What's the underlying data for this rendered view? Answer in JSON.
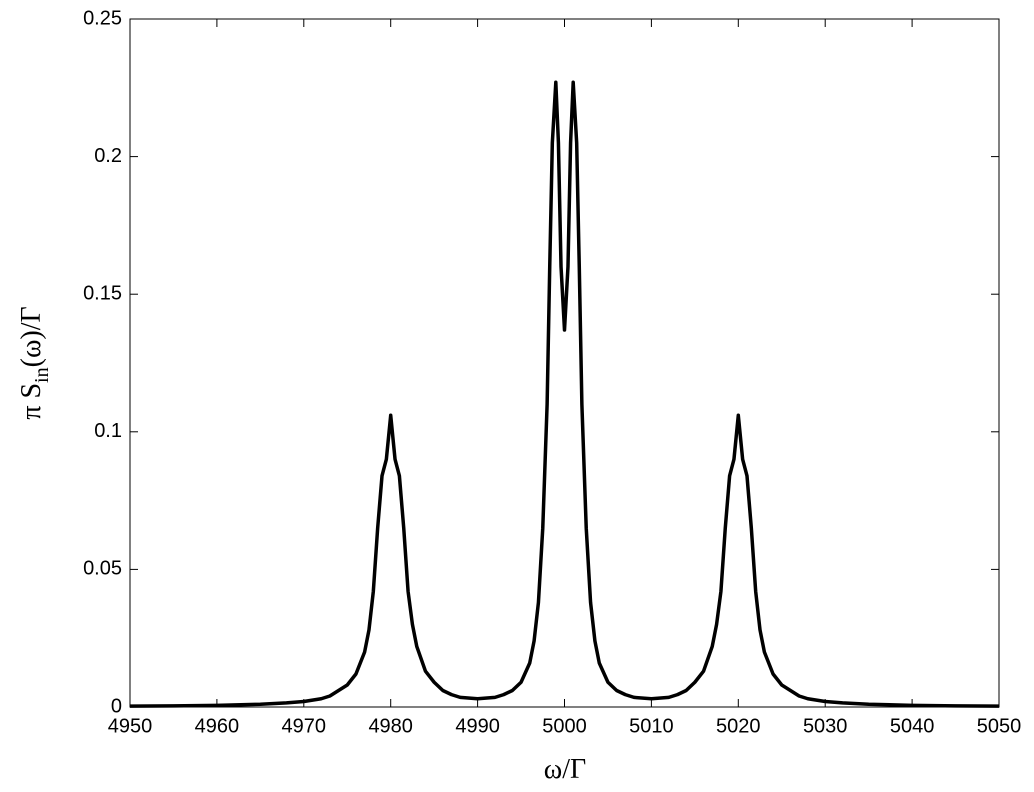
{
  "chart_data": {
    "type": "line",
    "xlabel": "ω/Γ",
    "ylabel_parts": [
      "π S",
      "in",
      "(ω)/Γ"
    ],
    "x": [
      4950,
      4955,
      4960,
      4965,
      4968,
      4970,
      4972,
      4973,
      4974,
      4975,
      4976,
      4977,
      4977.5,
      4978,
      4978.5,
      4979,
      4979.5,
      4980,
      4980.5,
      4981,
      4981.5,
      4982,
      4982.5,
      4983,
      4984,
      4985,
      4986,
      4987,
      4988,
      4990,
      4992,
      4993,
      4994,
      4995,
      4996,
      4996.5,
      4997,
      4997.5,
      4998,
      4998.3,
      4998.6,
      4999,
      4999.3,
      4999.6,
      5000,
      5000.4,
      5000.7,
      5001,
      5001.4,
      5001.7,
      5002,
      5002.5,
      5003,
      5003.5,
      5004,
      5005,
      5006,
      5007,
      5008,
      5010,
      5012,
      5013,
      5014,
      5015,
      5016,
      5017,
      5017.5,
      5018,
      5018.5,
      5019,
      5019.5,
      5020,
      5020.5,
      5021,
      5021.5,
      5022,
      5022.5,
      5023,
      5024,
      5025,
      5026,
      5027,
      5028,
      5030,
      5032,
      5035,
      5040,
      5045,
      5050
    ],
    "values": [
      0.0003,
      0.0004,
      0.0006,
      0.001,
      0.0015,
      0.002,
      0.003,
      0.004,
      0.006,
      0.008,
      0.012,
      0.02,
      0.028,
      0.042,
      0.065,
      0.084,
      0.09,
      0.106,
      0.09,
      0.084,
      0.065,
      0.042,
      0.03,
      0.022,
      0.013,
      0.009,
      0.006,
      0.0045,
      0.0035,
      0.003,
      0.0035,
      0.0045,
      0.006,
      0.009,
      0.016,
      0.024,
      0.038,
      0.065,
      0.11,
      0.16,
      0.205,
      0.227,
      0.205,
      0.16,
      0.137,
      0.16,
      0.205,
      0.227,
      0.205,
      0.16,
      0.11,
      0.065,
      0.038,
      0.024,
      0.016,
      0.009,
      0.006,
      0.0045,
      0.0035,
      0.003,
      0.0035,
      0.0045,
      0.006,
      0.009,
      0.013,
      0.022,
      0.03,
      0.042,
      0.065,
      0.084,
      0.09,
      0.106,
      0.09,
      0.084,
      0.065,
      0.042,
      0.028,
      0.02,
      0.012,
      0.008,
      0.006,
      0.004,
      0.003,
      0.002,
      0.0015,
      0.001,
      0.0006,
      0.0004,
      0.0003
    ],
    "color": "#000000",
    "xlim": [
      4950,
      5050
    ],
    "xticks": [
      4950,
      4960,
      4970,
      4980,
      4990,
      5000,
      5010,
      5020,
      5030,
      5040,
      5050
    ],
    "ylim": [
      0,
      0.25
    ],
    "yticks": [
      0,
      0.05,
      0.1,
      0.15,
      0.2,
      0.25
    ],
    "grid": false
  }
}
